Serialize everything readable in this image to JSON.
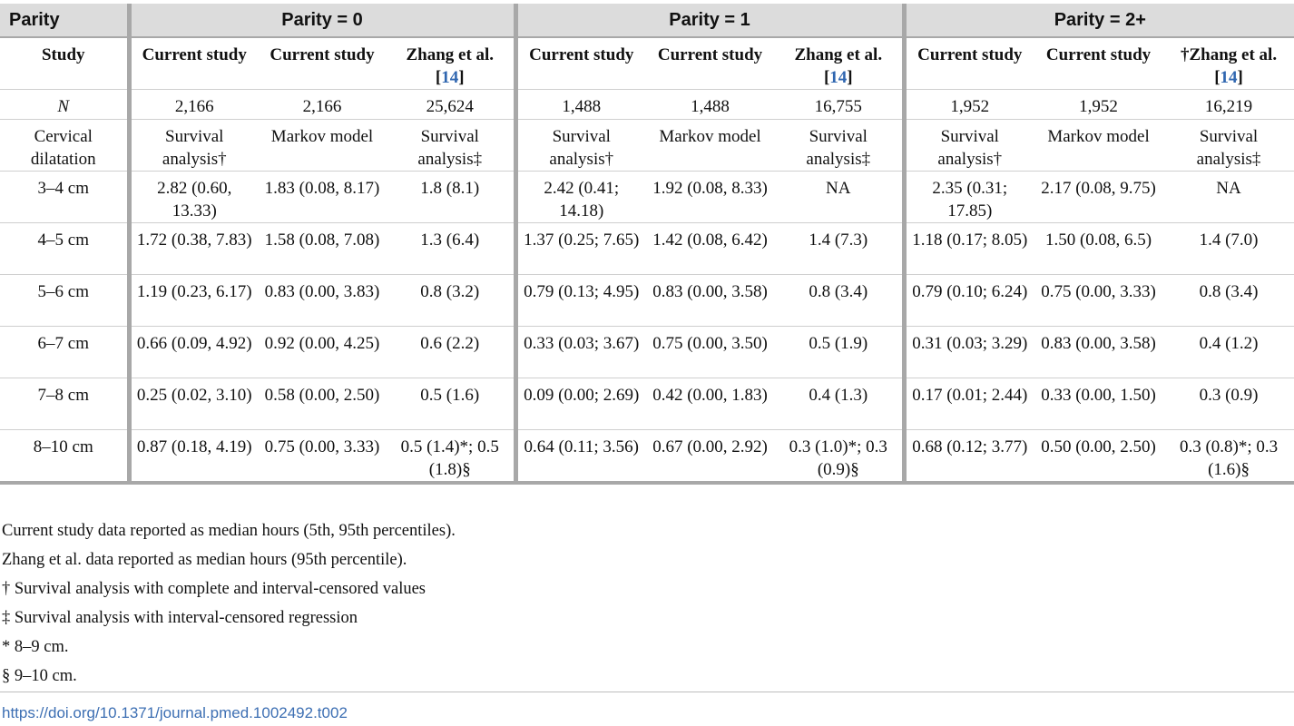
{
  "table": {
    "groups": [
      "Parity",
      "Parity = 0",
      "Parity = 1",
      "Parity = 2+"
    ],
    "study_label": "Study",
    "studies": [
      {
        "name": "Current study",
        "ref": ""
      },
      {
        "name": "Current study",
        "ref": ""
      },
      {
        "name": "Zhang et al.",
        "ref": "14"
      },
      {
        "name": "Current study",
        "ref": ""
      },
      {
        "name": "Current study",
        "ref": ""
      },
      {
        "name": "Zhang et al.",
        "ref": "14"
      },
      {
        "name": "Current study",
        "ref": ""
      },
      {
        "name": "Current study",
        "ref": ""
      },
      {
        "name": "†Zhang et al.",
        "ref": "14"
      }
    ],
    "n_label": "N",
    "n_values": [
      "2,166",
      "2,166",
      "25,624",
      "1,488",
      "1,488",
      "16,755",
      "1,952",
      "1,952",
      "16,219"
    ],
    "method_label": "Cervical dilatation",
    "methods": [
      "Survival analysis†",
      "Markov model",
      "Survival analysis‡",
      "Survival analysis†",
      "Markov model",
      "Survival analysis‡",
      "Survival analysis†",
      "Markov model",
      "Survival analysis‡"
    ],
    "rows": [
      {
        "label": "3–4 cm",
        "cells": [
          "2.82 (0.60, 13.33)",
          "1.83 (0.08, 8.17)",
          "1.8 (8.1)",
          "2.42 (0.41; 14.18)",
          "1.92 (0.08, 8.33)",
          "NA",
          "2.35 (0.31; 17.85)",
          "2.17 (0.08, 9.75)",
          "NA"
        ]
      },
      {
        "label": "4–5 cm",
        "cells": [
          "1.72 (0.38, 7.83)",
          "1.58 (0.08, 7.08)",
          "1.3 (6.4)",
          "1.37 (0.25; 7.65)",
          "1.42 (0.08, 6.42)",
          "1.4 (7.3)",
          "1.18 (0.17; 8.05)",
          "1.50 (0.08, 6.5)",
          "1.4 (7.0)"
        ]
      },
      {
        "label": "5–6 cm",
        "cells": [
          "1.19 (0.23, 6.17)",
          "0.83 (0.00, 3.83)",
          "0.8 (3.2)",
          "0.79 (0.13; 4.95)",
          "0.83 (0.00, 3.58)",
          "0.8 (3.4)",
          "0.79 (0.10; 6.24)",
          "0.75 (0.00, 3.33)",
          "0.8 (3.4)"
        ]
      },
      {
        "label": "6–7 cm",
        "cells": [
          "0.66 (0.09, 4.92)",
          "0.92 (0.00, 4.25)",
          "0.6 (2.2)",
          "0.33 (0.03; 3.67)",
          "0.75 (0.00, 3.50)",
          "0.5 (1.9)",
          "0.31 (0.03; 3.29)",
          "0.83 (0.00, 3.58)",
          "0.4 (1.2)"
        ]
      },
      {
        "label": "7–8 cm",
        "cells": [
          "0.25 (0.02, 3.10)",
          "0.58 (0.00, 2.50)",
          "0.5 (1.6)",
          "0.09 (0.00; 2.69)",
          "0.42 (0.00, 1.83)",
          "0.4 (1.3)",
          "0.17 (0.01; 2.44)",
          "0.33 (0.00, 1.50)",
          "0.3 (0.9)"
        ]
      },
      {
        "label": "8–10 cm",
        "cells": [
          "0.87 (0.18, 4.19)",
          "0.75 (0.00, 3.33)",
          "0.5 (1.4)*; 0.5 (1.8)§",
          "0.64 (0.11; 3.56)",
          "0.67 (0.00, 2.92)",
          "0.3 (1.0)*; 0.3 (0.9)§",
          "0.68 (0.12; 3.77)",
          "0.50 (0.00, 2.50)",
          "0.3 (0.8)*; 0.3 (1.6)§"
        ]
      }
    ]
  },
  "notes": [
    "Current study data reported as median hours (5th, 95th percentiles).",
    "Zhang et al. data reported as median hours (95th percentile).",
    "† Survival analysis with complete and interval-censored values",
    "‡ Survival analysis with interval-censored regression",
    "* 8–9 cm.",
    "§ 9–10 cm."
  ],
  "doi": "https://doi.org/10.1371/journal.pmed.1002492.t002",
  "colors": {
    "header_bg": "#dcdcdc",
    "separator": "#a8a8a8",
    "link": "#3d6fb3",
    "ref": "#2f66b0"
  }
}
